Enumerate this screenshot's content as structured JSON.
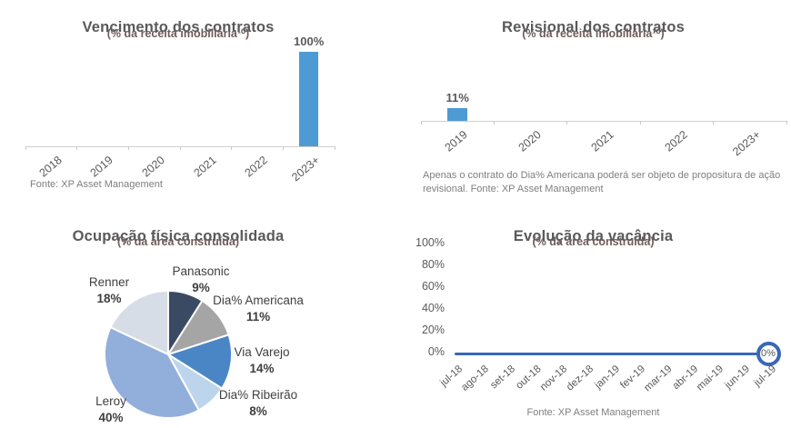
{
  "colors": {
    "title": "#595959",
    "subtitle": "#6e5c58",
    "axis_label": "#595959",
    "axis_line": "#cfcfcf",
    "source_text": "#7f7f7f",
    "bar_blue": "#4e9ad3",
    "line_blue": "#3a67b8"
  },
  "chart_data": [
    {
      "id": "vencimento",
      "type": "bar",
      "title": "Vencimento dos contratos",
      "subtitle": "(% da receita imobiliária¹⁰)",
      "categories": [
        "2018",
        "2019",
        "2020",
        "2021",
        "2022",
        "2023+"
      ],
      "values": [
        0,
        0,
        0,
        0,
        0,
        100
      ],
      "data_labels": [
        "",
        "",
        "",
        "",
        "",
        "100%"
      ],
      "ylim": [
        0,
        100
      ],
      "bar_color": "#4e9ad3",
      "source": "Fonte: XP Asset Management"
    },
    {
      "id": "revisional",
      "type": "bar",
      "title": "Revisional dos contratos",
      "subtitle": "(% da receita imobiliária¹⁰)",
      "categories": [
        "2019",
        "2020",
        "2021",
        "2022",
        "2023+"
      ],
      "values": [
        11,
        0,
        0,
        0,
        0
      ],
      "data_labels": [
        "11%",
        "",
        "",
        "",
        ""
      ],
      "ylim": [
        0,
        100
      ],
      "bar_color": "#4e9ad3",
      "note": "Apenas o contrato do Dia% Americana poderá ser objeto de propositura de ação revisional. Fonte: XP Asset Management"
    },
    {
      "id": "ocupacao",
      "type": "pie",
      "title": "Ocupação física consolidada",
      "subtitle": "(% da área construída)",
      "slices": [
        {
          "label": "Panasonic",
          "value": 9,
          "display": "9%",
          "color": "#3a4a63"
        },
        {
          "label": "Dia% Americana",
          "value": 11,
          "display": "11%",
          "color": "#a5a5a5"
        },
        {
          "label": "Via Varejo",
          "value": 14,
          "display": "14%",
          "color": "#4a86c6"
        },
        {
          "label": "Dia% Ribeirão",
          "value": 8,
          "display": "8%",
          "color": "#bdd5ec"
        },
        {
          "label": "Leroy",
          "value": 40,
          "display": "40%",
          "color": "#92afdb"
        },
        {
          "label": "Renner",
          "value": 18,
          "display": "18%",
          "color": "#d7dde7"
        }
      ]
    },
    {
      "id": "vacancia",
      "type": "line",
      "title": "Evolução da vacância",
      "subtitle": "(% da área construída)",
      "x": [
        "jul-18",
        "ago-18",
        "set-18",
        "out-18",
        "nov-18",
        "dez-18",
        "jan-19",
        "fev-19",
        "mar-19",
        "abr-19",
        "mai-19",
        "jun-19",
        "jul-19"
      ],
      "values": [
        0,
        0,
        0,
        0,
        0,
        0,
        0,
        0,
        0,
        0,
        0,
        0,
        0
      ],
      "yticks": [
        "100%",
        "80%",
        "60%",
        "40%",
        "20%",
        "0%"
      ],
      "ylim": [
        0,
        100
      ],
      "line_color": "#3a67b8",
      "end_label": "0%",
      "source": "Fonte: XP Asset Management"
    }
  ]
}
